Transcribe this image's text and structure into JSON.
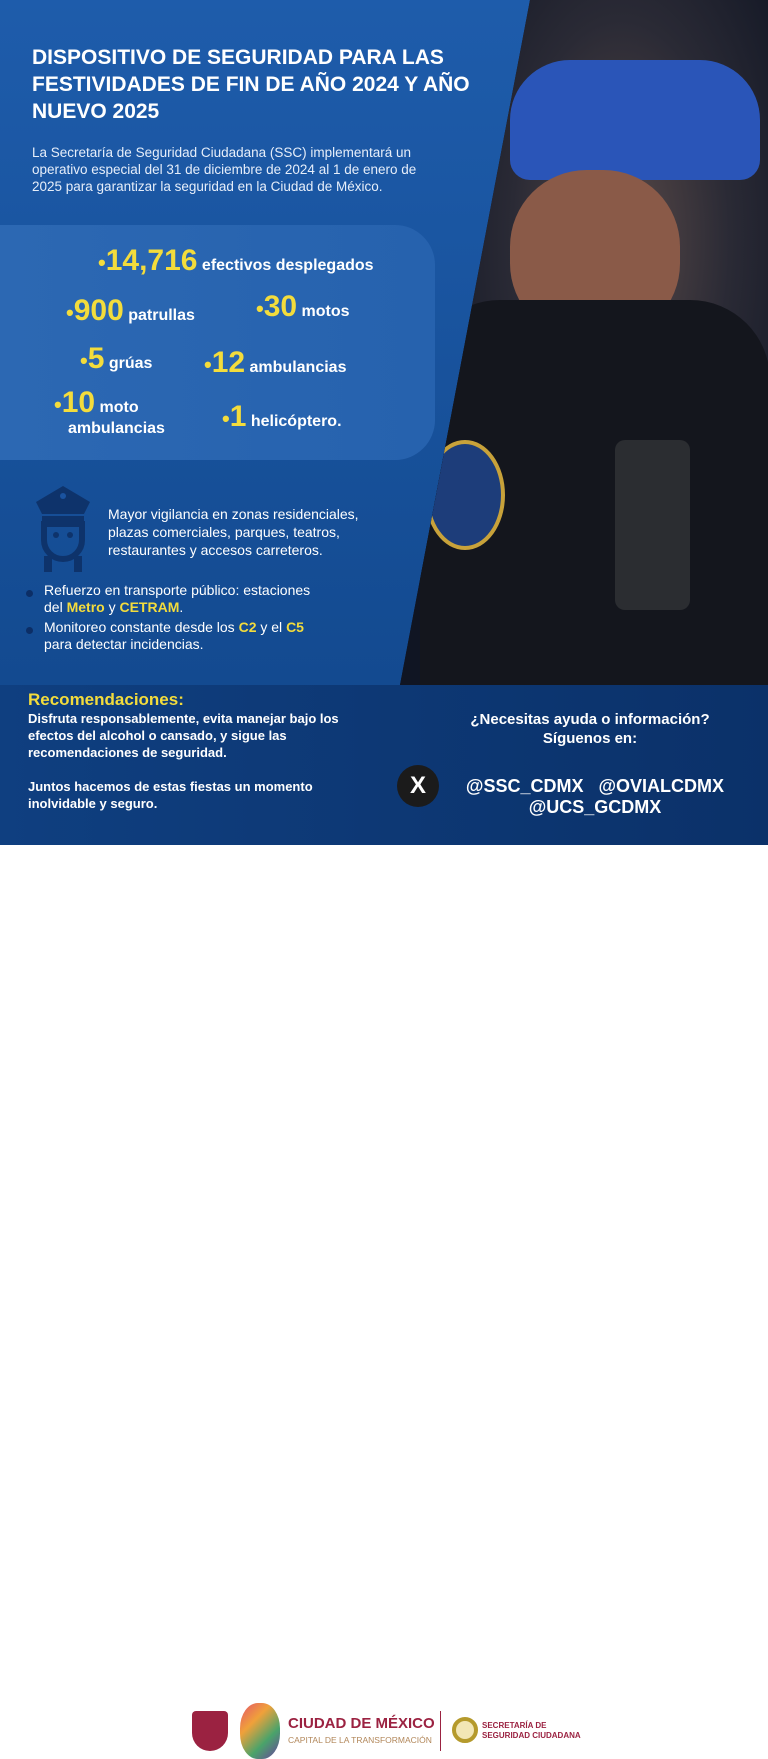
{
  "title": "DISPOSITIVO DE SEGURIDAD PARA LAS FESTIVIDADES DE FIN DE AÑO 2024 Y AÑO NUEVO 2025",
  "intro": "La Secretaría de Seguridad Ciudadana (SSC) implementará un operativo especial del 31 de diciembre de 2024 al 1 de enero de 2025 para garantizar la seguridad en la Ciudad de México.",
  "stats": [
    {
      "bullet": "•",
      "number": "14,716",
      "label": "efectivos desplegados"
    },
    {
      "bullet": "•",
      "number": "900",
      "label": "patrullas"
    },
    {
      "bullet": "•",
      "number": "30",
      "label": "motos"
    },
    {
      "bullet": "•",
      "number": "5",
      "label": "grúas"
    },
    {
      "bullet": "•",
      "number": "12",
      "label": "ambulancias"
    },
    {
      "bullet": "•",
      "number": "10",
      "label": "moto",
      "label2": "ambulancias"
    },
    {
      "bullet": "•",
      "number": "1",
      "label": "helicóptero."
    }
  ],
  "vigilance": {
    "icon": "police-officer-icon",
    "text": "Mayor vigilancia en zonas residenciales, plazas comerciales, parques, teatros, restaurantes y accesos carreteros."
  },
  "bullets": [
    {
      "pre": "Refuerzo en transporte público: estaciones",
      "line2_pre": "del ",
      "h1": "Metro",
      "mid": " y ",
      "h2": "CETRAM",
      "post": "."
    },
    {
      "pre": "Monitoreo constante desde los ",
      "h1": "C2",
      "mid": " y el ",
      "h2": "C5",
      "line2": "para detectar incidencias."
    }
  ],
  "recommendations": {
    "heading": "Recomendaciones:",
    "p1": "Disfruta responsablemente, evita manejar bajo los efectos del alcohol o cansado, y sigue las recomendaciones de seguridad.",
    "p2": "Juntos hacemos de estas fiestas un momento inolvidable y seguro."
  },
  "help": {
    "line1": "¿Necesitas ayuda o información?",
    "line2": "Síguenos en:",
    "x_icon": "X",
    "handles1": "@SSC_CDMX   @OVIALCDMX",
    "handles2": "@UCS_GCDMX"
  },
  "footer": {
    "city": "CIUDAD DE MÉXICO",
    "tagline": "CAPITAL DE LA TRANSFORMACIÓN",
    "ssc1": "SECRETARÍA DE",
    "ssc2": "SEGURIDAD CIUDADANA"
  },
  "colors": {
    "accent": "#f3dc3c",
    "background": "#1a53a0",
    "brand": "#9b2241"
  }
}
